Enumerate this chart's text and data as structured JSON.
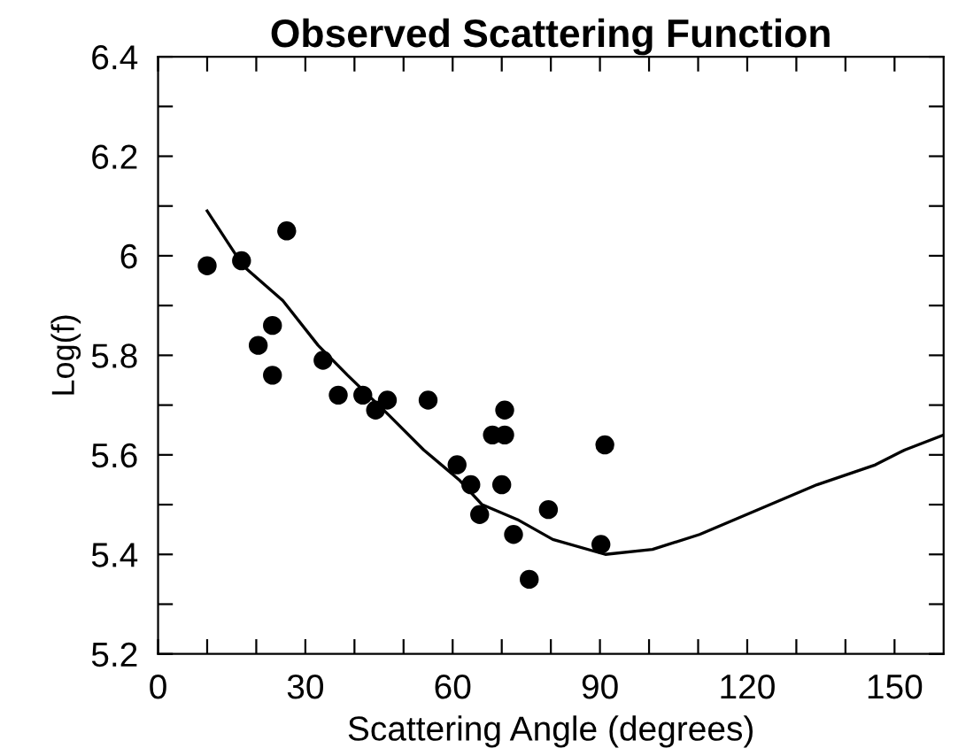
{
  "chart_data": {
    "type": "scatter",
    "title": "Observed Scattering Function",
    "xlabel": "Scattering Angle (degrees)",
    "ylabel": "Log(f)",
    "xlim": [
      0,
      160
    ],
    "ylim": [
      5.2,
      6.4
    ],
    "xticks": [
      0,
      {
        "value": 10,
        "label": null
      },
      {
        "value": 20,
        "label": null
      },
      30,
      {
        "value": 40,
        "label": null
      },
      {
        "value": 50,
        "label": null
      },
      60,
      {
        "value": 70,
        "label": null
      },
      {
        "value": 80,
        "label": null
      },
      90,
      {
        "value": 100,
        "label": null
      },
      {
        "value": 110,
        "label": null
      },
      120,
      {
        "value": 130,
        "label": null
      },
      {
        "value": 140,
        "label": null
      },
      150
    ],
    "yticks": [
      5.2,
      {
        "value": 5.3,
        "label": null
      },
      5.4,
      {
        "value": 5.5,
        "label": null
      },
      5.6,
      {
        "value": 5.7,
        "label": null
      },
      5.8,
      {
        "value": 5.9,
        "label": null
      },
      6,
      {
        "value": 6.1,
        "label": null
      },
      6.2,
      {
        "value": 6.3,
        "label": null
      },
      6.4
    ],
    "grid": false,
    "legend": false,
    "series": [
      {
        "color": "#000000",
        "marker": "circle",
        "x": [
          10,
          17,
          20.4,
          23.3,
          23.3,
          26.2,
          33.6,
          36.7,
          41.7,
          44.3,
          46.7,
          55,
          60.9,
          63.7,
          65.5,
          68.1,
          70.6,
          70.6,
          70,
          72.4,
          75.6,
          79.5,
          90.2,
          91
        ],
        "values": [
          5.98,
          5.99,
          5.82,
          5.86,
          5.76,
          6.05,
          5.79,
          5.72,
          5.72,
          5.69,
          5.71,
          5.71,
          5.58,
          5.54,
          5.48,
          5.64,
          5.64,
          5.69,
          5.54,
          5.44,
          5.35,
          5.49,
          5.42,
          5.62
        ]
      },
      {
        "type": "line",
        "color": "#000000",
        "marker": "none",
        "line_style": "solid",
        "x": [
          10,
          17.3,
          25.4,
          32.6,
          38.6,
          47,
          54.1,
          61.3,
          66,
          73.2,
          80.4,
          91.1,
          100.7,
          110.3,
          122.2,
          134.2,
          146.1,
          152.1,
          160
        ],
        "values": [
          6.09,
          5.98,
          5.91,
          5.82,
          5.76,
          5.68,
          5.61,
          5.55,
          5.5,
          5.47,
          5.43,
          5.4,
          5.41,
          5.44,
          5.49,
          5.54,
          5.58,
          5.61,
          5.64
        ]
      }
    ]
  }
}
